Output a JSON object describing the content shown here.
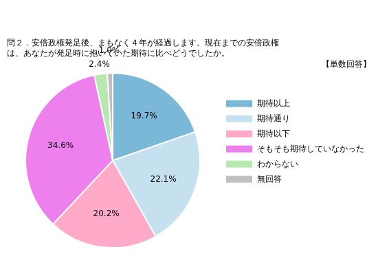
{
  "chart_data": {
    "type": "pie",
    "title": [
      "問２．安倍政権発足後、まもなく４年が経過します。現在までの安倍政権",
      "は、あなたが発足時に抱いていた期待に比べどうでしたか。"
    ],
    "subtitle": "【単数回答】",
    "categories": [
      "期待以上",
      "期待通り",
      "期待以下",
      "そもそも期待していなかった",
      "わからない",
      "無回答"
    ],
    "values": [
      19.7,
      22.1,
      20.2,
      34.6,
      2.4,
      1.0
    ],
    "value_labels": [
      "19.7%",
      "22.1%",
      "20.2%",
      "34.6%",
      "2.4%",
      "1.0%"
    ],
    "colors": [
      "#7BB8D8",
      "#C5E0EF",
      "#FFAAC8",
      "#EE80EE",
      "#B8E8B0",
      "#C0C0C0"
    ],
    "data_labels": true,
    "legend": "right"
  }
}
